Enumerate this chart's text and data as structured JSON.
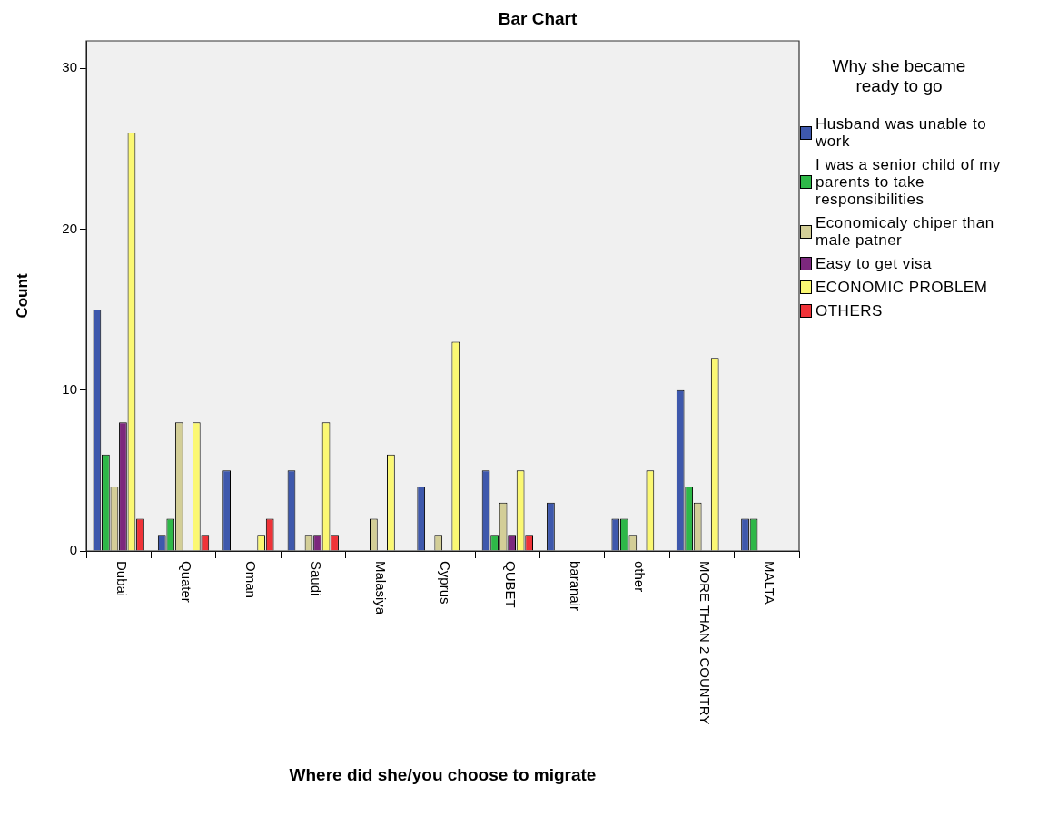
{
  "chart_data": {
    "type": "bar",
    "title": "Bar Chart",
    "xlabel": "Where did she/you choose to migrate",
    "ylabel": "Count",
    "legend_title": "Why she became ready to go",
    "categories": [
      "Dubai",
      "Quater",
      "Oman",
      "Saudi",
      "Malasiya",
      "Cyprus",
      "QUBET",
      "baranair",
      "other",
      "MORE THAN 2 COUNTRY",
      "MALTA"
    ],
    "series": [
      {
        "name": "Husband was unable to work",
        "color": "#3e58ac",
        "values": [
          15,
          1,
          5,
          5,
          0,
          4,
          5,
          3,
          2,
          10,
          2
        ]
      },
      {
        "name": "I was a senior child of my parents to take responsibilities",
        "color": "#2eb848",
        "values": [
          6,
          2,
          0,
          0,
          0,
          0,
          1,
          0,
          2,
          4,
          2
        ]
      },
      {
        "name": "Economicaly chiper than male patner",
        "color": "#d3ce97",
        "values": [
          4,
          8,
          0,
          1,
          2,
          1,
          3,
          0,
          1,
          3,
          0
        ]
      },
      {
        "name": "Easy to get visa",
        "color": "#7c287d",
        "values": [
          8,
          0,
          0,
          1,
          0,
          0,
          1,
          0,
          0,
          0,
          0
        ]
      },
      {
        "name": "ECONOMIC PROBLEM",
        "color": "#fbf873",
        "values": [
          26,
          8,
          1,
          8,
          6,
          13,
          5,
          0,
          5,
          12,
          0
        ]
      },
      {
        "name": "OTHERS",
        "color": "#ef3338",
        "values": [
          2,
          1,
          2,
          1,
          0,
          0,
          1,
          0,
          0,
          0,
          0
        ]
      }
    ],
    "ylim": [
      0,
      31.7
    ],
    "yticks": [
      0,
      10,
      20,
      30
    ],
    "grid": false,
    "legend": "right"
  }
}
